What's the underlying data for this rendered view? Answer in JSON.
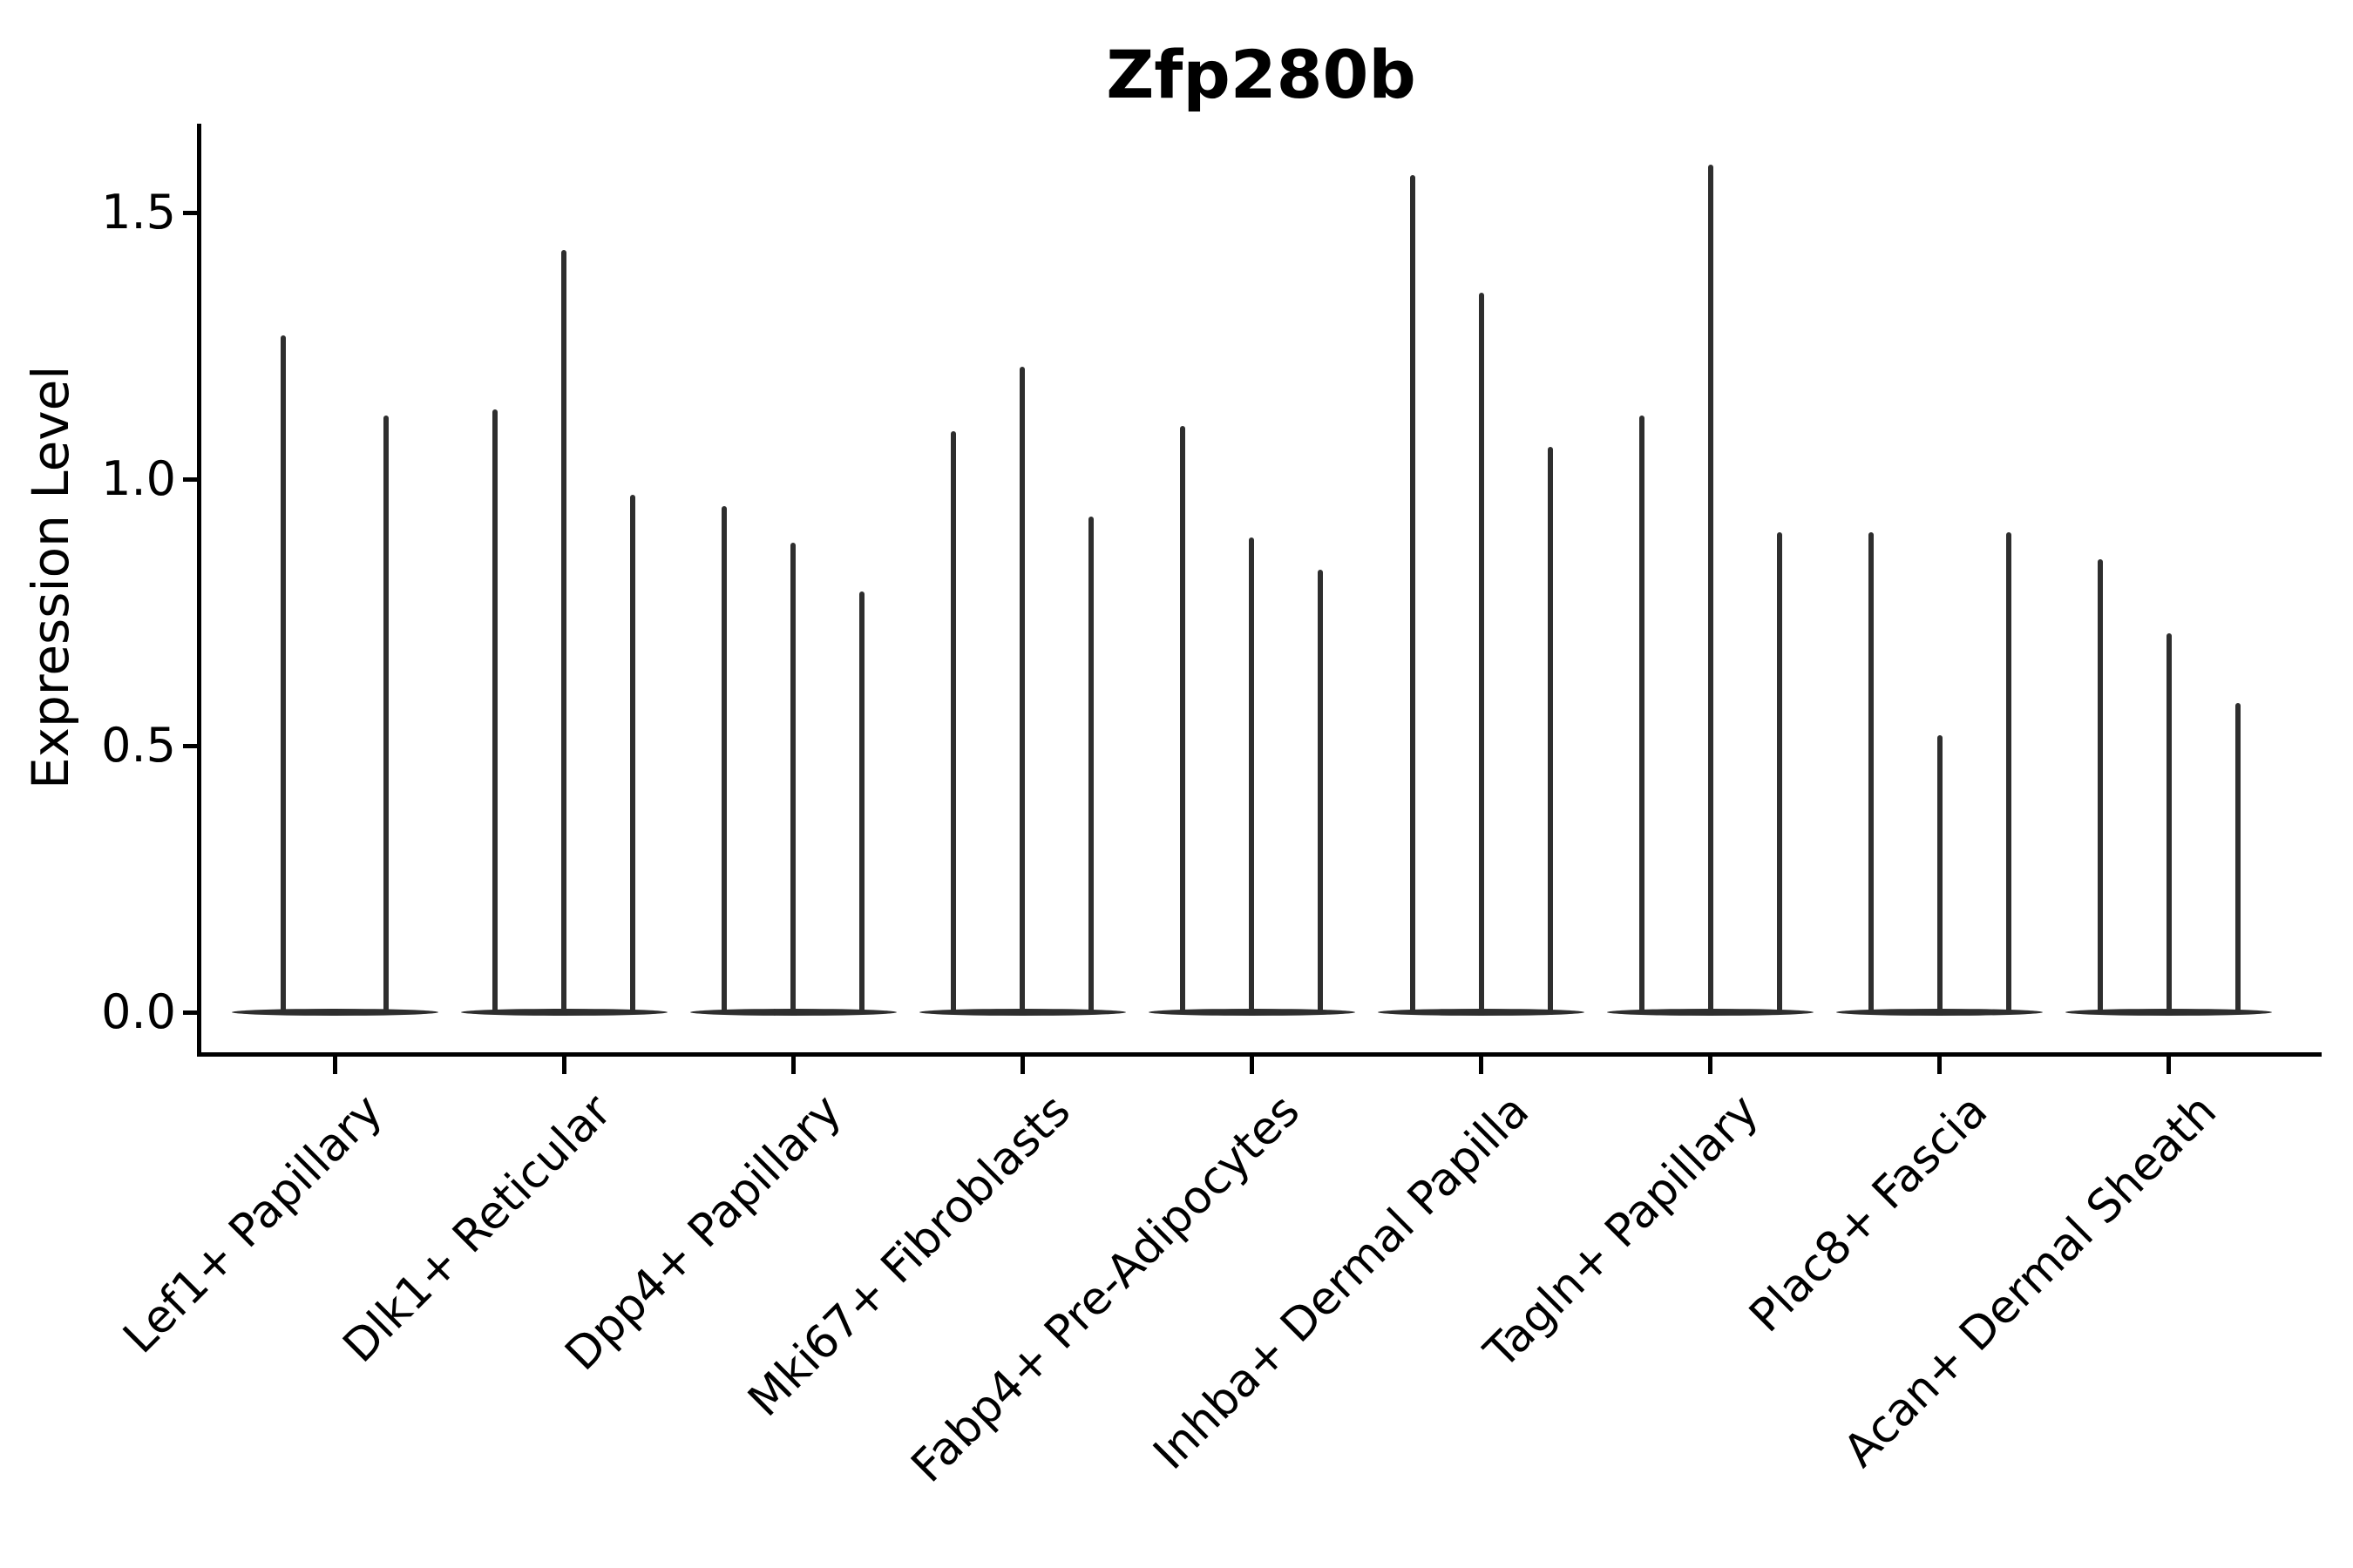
{
  "title": "Zfp280b",
  "y_axis": {
    "label": "Expression Level",
    "tick_labels": [
      "1.5",
      "1.0",
      "0.5",
      "0.0"
    ],
    "tick_values": [
      1.5,
      1.0,
      0.5,
      0.0
    ]
  },
  "x_axis": {
    "categories": [
      "Lef1+ Papillary",
      "Dlk1+ Reticular",
      "Dpp4+ Papillary",
      "Mki67+ Fibroblasts",
      "Fabp4+ Pre-Adipocytes",
      "Inhba+ Dermal Papilla",
      "Tagln+ Papillary",
      "Plac8+ Fascia",
      "Acan+ Dermal Sheath"
    ]
  },
  "colors": {
    "violin": "#2e2e2e",
    "axis": "#000000",
    "background": "#ffffff"
  },
  "chart_data": {
    "type": "violin",
    "title": "Zfp280b",
    "xlabel": "",
    "ylabel": "Expression Level",
    "ylim": [
      0,
      1.67
    ],
    "yticks": [
      0.0,
      0.5,
      1.0,
      1.5
    ],
    "grid": false,
    "legend": "none",
    "shape_note": "each violin is a needle: flat wide base at expression 0 with a thin spike up to the max expression value",
    "groups": [
      {
        "category": "Lef1+ Papillary",
        "violin_max_values": [
          1.27,
          1.12
        ]
      },
      {
        "category": "Dlk1+ Reticular",
        "violin_max_values": [
          1.13,
          1.43,
          0.97
        ]
      },
      {
        "category": "Dpp4+ Papillary",
        "violin_max_values": [
          0.95,
          0.88,
          0.79
        ]
      },
      {
        "category": "Mki67+ Fibroblasts",
        "violin_max_values": [
          1.09,
          1.21,
          0.93
        ]
      },
      {
        "category": "Fabp4+ Pre-Adipocytes",
        "violin_max_values": [
          1.1,
          0.89,
          0.83
        ]
      },
      {
        "category": "Inhba+ Dermal Papilla",
        "violin_max_values": [
          1.57,
          1.35,
          1.06
        ]
      },
      {
        "category": "Tagln+ Papillary",
        "violin_max_values": [
          1.12,
          1.59,
          0.9
        ]
      },
      {
        "category": "Plac8+ Fascia",
        "violin_max_values": [
          0.9,
          0.52,
          0.9
        ]
      },
      {
        "category": "Acan+ Dermal Sheath",
        "violin_max_values": [
          0.85,
          0.71,
          0.58
        ]
      }
    ]
  }
}
